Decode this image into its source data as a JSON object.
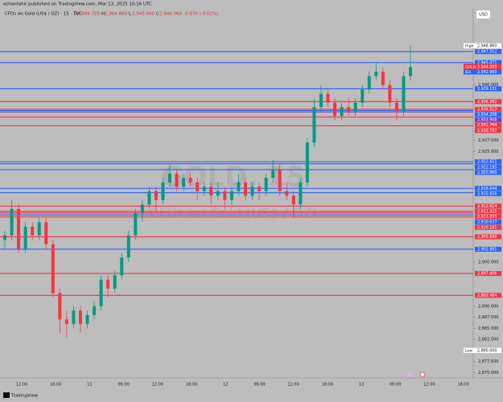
{
  "page": {
    "publisher": "azhantahir published on TradingView.com, Mar 13, 2025 10:16 UTC",
    "symbol": "CFDs on Gold (US$ / OZ) · 15 · TVC",
    "ohlc": [
      {
        "key": "O",
        "label": "2,944.759"
      },
      {
        "key": "H",
        "label": "2,944.860"
      },
      {
        "key": "L",
        "label": "2,943.405"
      },
      {
        "key": "C",
        "label": "2,944.060"
      }
    ],
    "change": "-0.670 (-0.02%)",
    "currency": "USD",
    "watermark": "GOLD, 15",
    "watermark_sub": "CFDs on Gold (US$ / OZ)",
    "countdown": "13:10",
    "footer": "TradingView"
  },
  "chart_data": {
    "type": "candlestick",
    "up_color": "#089981",
    "down_color": "#f23645",
    "ylim": [
      2873.8,
      2957.4
    ],
    "yticks": [
      {
        "value": 2875,
        "label": "2,875.000"
      },
      {
        "value": 2877.5,
        "label": "2,877.500"
      },
      {
        "value": 2882.5,
        "label": "2,882.500"
      },
      {
        "value": 2885,
        "label": "2,885.000"
      },
      {
        "value": 2887.5,
        "label": "2,887.500"
      },
      {
        "value": 2890,
        "label": "2,890.000"
      },
      {
        "value": 2900,
        "label": "2,900.000"
      },
      {
        "value": 2925,
        "label": "2,925.000"
      },
      {
        "value": 2927.5,
        "label": "2,927.500"
      },
      {
        "value": 2940,
        "label": "2,940.000"
      }
    ],
    "xlabels": [
      "12:00",
      "18:00",
      "11",
      "06:00",
      "12:00",
      "18:00",
      "12",
      "06:00",
      "12:00",
      "18:00",
      "13",
      "06:00",
      "12:00",
      "18:00"
    ],
    "candles": [
      [
        2905,
        2907,
        2903,
        2906
      ],
      [
        2906,
        2914,
        2905,
        2912
      ],
      [
        2912,
        2913,
        2902,
        2903
      ],
      [
        2903,
        2909,
        2902,
        2908
      ],
      [
        2908,
        2909,
        2905,
        2906
      ],
      [
        2906,
        2910,
        2905,
        2909
      ],
      [
        2909,
        2910,
        2903,
        2904
      ],
      [
        2904,
        2905,
        2892,
        2893
      ],
      [
        2893,
        2894,
        2884,
        2887
      ],
      [
        2887,
        2889,
        2883,
        2886
      ],
      [
        2886,
        2890,
        2885,
        2889
      ],
      [
        2889,
        2890,
        2884,
        2886
      ],
      [
        2886,
        2889,
        2885,
        2888
      ],
      [
        2888,
        2891,
        2887,
        2890
      ],
      [
        2890,
        2897,
        2889,
        2896
      ],
      [
        2896,
        2897,
        2892,
        2894
      ],
      [
        2894,
        2898,
        2893,
        2897
      ],
      [
        2897,
        2902,
        2896,
        2901
      ],
      [
        2901,
        2907,
        2900,
        2906
      ],
      [
        2906,
        2912,
        2905,
        2911
      ],
      [
        2911,
        2914,
        2909,
        2913
      ],
      [
        2913,
        2917,
        2912,
        2916
      ],
      [
        2916,
        2917,
        2911,
        2914
      ],
      [
        2914,
        2919,
        2913,
        2918
      ],
      [
        2918,
        2922,
        2917,
        2920
      ],
      [
        2920,
        2921,
        2916,
        2917
      ],
      [
        2917,
        2920,
        2916,
        2919
      ],
      [
        2919,
        2920,
        2917,
        2918
      ],
      [
        2918,
        2919,
        2914,
        2916
      ],
      [
        2916,
        2918,
        2915,
        2917
      ],
      [
        2917,
        2918,
        2913,
        2915
      ],
      [
        2915,
        2918,
        2914,
        2916
      ],
      [
        2916,
        2917,
        2912,
        2914
      ],
      [
        2914,
        2917,
        2913,
        2916
      ],
      [
        2916,
        2920,
        2915,
        2918
      ],
      [
        2918,
        2919,
        2914,
        2915
      ],
      [
        2915,
        2918,
        2914,
        2917
      ],
      [
        2917,
        2918,
        2914,
        2916
      ],
      [
        2916,
        2920,
        2915,
        2919
      ],
      [
        2919,
        2923,
        2918,
        2921
      ],
      [
        2921,
        2922,
        2915,
        2916
      ],
      [
        2916,
        2918,
        2914,
        2915
      ],
      [
        2915,
        2916,
        2910,
        2913
      ],
      [
        2913,
        2919,
        2912,
        2918
      ],
      [
        2918,
        2928,
        2917,
        2927
      ],
      [
        2927,
        2937,
        2926,
        2935
      ],
      [
        2935,
        2940,
        2934,
        2938
      ],
      [
        2938,
        2939,
        2935,
        2936
      ],
      [
        2936,
        2937,
        2932,
        2933
      ],
      [
        2933,
        2936,
        2932,
        2935
      ],
      [
        2935,
        2937,
        2933,
        2934
      ],
      [
        2934,
        2937,
        2933,
        2936
      ],
      [
        2936,
        2940,
        2935,
        2939
      ],
      [
        2939,
        2943,
        2938,
        2942
      ],
      [
        2942,
        2945,
        2941,
        2943
      ],
      [
        2943,
        2944,
        2939,
        2940
      ],
      [
        2940,
        2941,
        2935,
        2936
      ],
      [
        2936,
        2937,
        2932,
        2934
      ],
      [
        2934,
        2943,
        2933,
        2942
      ],
      [
        2942,
        2948.86,
        2941,
        2944.06
      ]
    ],
    "levels": [
      {
        "value": 2947.552,
        "label": "2,947.552",
        "color": "#2962ff"
      },
      {
        "value": 2945.071,
        "label": "2,945.071",
        "color": "#2962ff"
      },
      {
        "value": 2939.151,
        "label": "2,939.151",
        "color": "#2962ff"
      },
      {
        "value": 2936.262,
        "label": "2,936.262",
        "color": "#f23645"
      },
      {
        "value": 2934.513,
        "label": "2,934.513",
        "color": "#f23645"
      },
      {
        "value": 2934.208,
        "label": "2,934.208",
        "color": "#2962ff"
      },
      {
        "value": 2933.908,
        "label": "2,933.908",
        "color": "#7b3fbf"
      },
      {
        "value": 2932.764,
        "label": "2,932.764",
        "color": "#f23645"
      },
      {
        "value": 2930.787,
        "label": "2,930.787",
        "color": "#f23645"
      },
      {
        "value": 2922.651,
        "label": "2,922.651",
        "color": "#2962ff"
      },
      {
        "value": 2922.195,
        "label": "2,922.195",
        "color": "#2962ff"
      },
      {
        "value": 2920.866,
        "label": "2,920.866",
        "color": "#2962ff"
      },
      {
        "value": 2916.644,
        "label": "2,916.644",
        "color": "#2962ff"
      },
      {
        "value": 2915.656,
        "label": "2,915.656",
        "color": "#2962ff"
      },
      {
        "value": 2912.614,
        "label": "2,912.614",
        "color": "#f23645"
      },
      {
        "value": 2911.425,
        "label": "2,911.425",
        "color": "#f23645"
      },
      {
        "value": 2911.093,
        "label": "2,911.093",
        "color": "#f23645"
      },
      {
        "value": 2910.637,
        "label": "2,910.637",
        "color": "#2962ff"
      },
      {
        "value": 2910.181,
        "label": "2,910.181",
        "color": "#f23645"
      },
      {
        "value": 2905.69,
        "label": "2,905.690",
        "color": "#f23645"
      },
      {
        "value": 2902.881,
        "label": "2,902.881",
        "color": "#2962ff"
      },
      {
        "value": 2897.406,
        "label": "2,897.406",
        "color": "#f23645"
      },
      {
        "value": 2892.464,
        "label": "2,892.464",
        "color": "#f23645"
      }
    ],
    "price_tags": [
      {
        "tag": "High",
        "value": 2948.86,
        "label": "2,948.860",
        "color": "#ffffff"
      },
      {
        "tag": "Ask",
        "value": 2944.231,
        "label": "2,944.231",
        "color": "#f23645"
      },
      {
        "tag": "GOLD",
        "value": 2944.06,
        "label": "2,944.060",
        "color": "#f23645"
      },
      {
        "tag": "Bid",
        "value": 2942.969,
        "label": "2,942.969",
        "color": "#2962ff"
      },
      {
        "tag": "Low",
        "value": 2880,
        "label": "2,880.000",
        "color": "#ffffff"
      }
    ]
  }
}
